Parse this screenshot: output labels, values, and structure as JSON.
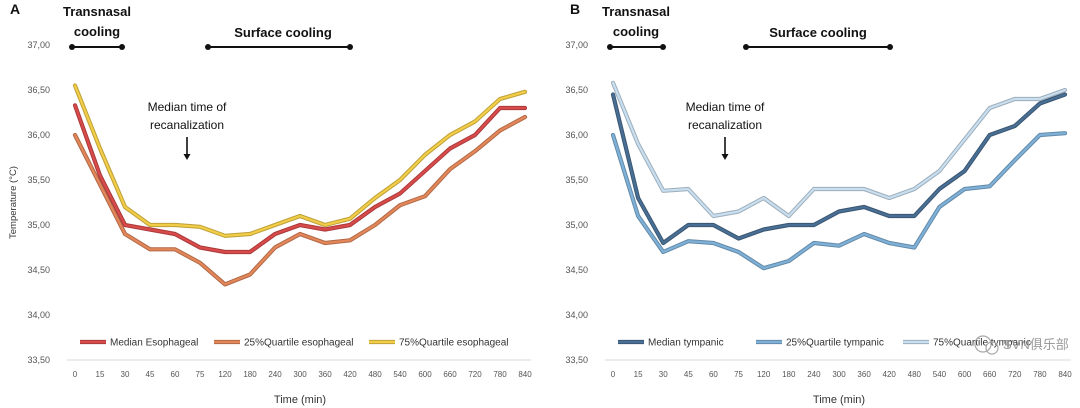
{
  "watermark": "SVN俱乐部",
  "chart_data": [
    {
      "type": "line",
      "panel_label": "A",
      "xlabel": "Time (min)",
      "ylabel": "Temperature (°C)",
      "ylim": [
        33.5,
        37.0
      ],
      "ytick_labels": [
        "33,50",
        "34,00",
        "34,50",
        "35,00",
        "35,50",
        "36,00",
        "36,50",
        "37,00"
      ],
      "categories": [
        "0",
        "15",
        "30",
        "45",
        "60",
        "75",
        "120",
        "180",
        "240",
        "300",
        "360",
        "420",
        "480",
        "540",
        "600",
        "660",
        "720",
        "780",
        "840"
      ],
      "annotations": {
        "phase1": "Transnasal cooling",
        "phase1_line1": "Transnasal",
        "phase1_line2": "cooling",
        "phase2": "Surface cooling",
        "recanalization_line1": "Median time of",
        "recanalization_line2": "recanalization"
      },
      "legend_position": "bottom",
      "series": [
        {
          "name": "Median Esophageal",
          "color": "#d94a4a",
          "values": [
            36.33,
            35.55,
            35.0,
            34.95,
            34.9,
            34.75,
            34.7,
            34.7,
            34.9,
            35.0,
            34.95,
            35.0,
            35.2,
            35.35,
            35.6,
            35.85,
            36.0,
            36.3,
            36.3
          ]
        },
        {
          "name": "25%Quartile esophageal",
          "color": "#e3875a",
          "values": [
            36.0,
            35.45,
            34.9,
            34.73,
            34.73,
            34.58,
            34.34,
            34.45,
            34.75,
            34.9,
            34.8,
            34.83,
            35.0,
            35.22,
            35.32,
            35.62,
            35.82,
            36.05,
            36.2
          ]
        },
        {
          "name": "75%Quartile esophageal",
          "color": "#f2cd48",
          "values": [
            36.55,
            35.85,
            35.2,
            35.0,
            35.0,
            34.98,
            34.88,
            34.9,
            35.0,
            35.1,
            35.0,
            35.07,
            35.3,
            35.5,
            35.78,
            36.0,
            36.15,
            36.4,
            36.48
          ]
        }
      ]
    },
    {
      "type": "line",
      "panel_label": "B",
      "xlabel": "Time (min)",
      "ylabel": "",
      "ylim": [
        33.5,
        37.0
      ],
      "ytick_labels": [
        "33,50",
        "34,00",
        "34,50",
        "35,00",
        "35,50",
        "36,00",
        "36,50",
        "37,00"
      ],
      "categories": [
        "0",
        "15",
        "30",
        "45",
        "60",
        "75",
        "120",
        "180",
        "240",
        "300",
        "360",
        "420",
        "480",
        "540",
        "600",
        "660",
        "720",
        "780",
        "840"
      ],
      "annotations": {
        "phase1": "Transnasal cooling",
        "phase1_line1": "Transnasal",
        "phase1_line2": "cooling",
        "phase2": "Surface cooling",
        "recanalization_line1": "Median time of",
        "recanalization_line2": "recanalization"
      },
      "legend_position": "bottom",
      "series": [
        {
          "name": "Median tympanic",
          "color": "#4a6f94",
          "values": [
            36.45,
            35.3,
            34.8,
            35.0,
            35.0,
            34.85,
            34.95,
            35.0,
            35.0,
            35.15,
            35.2,
            35.1,
            35.1,
            35.4,
            35.6,
            36.0,
            36.1,
            36.35,
            36.45
          ]
        },
        {
          "name": "25%Quartile tympanic",
          "color": "#7fb1d8",
          "values": [
            36.0,
            35.1,
            34.7,
            34.82,
            34.8,
            34.7,
            34.52,
            34.6,
            34.8,
            34.77,
            34.9,
            34.8,
            34.75,
            35.2,
            35.4,
            35.43,
            35.72,
            36.0,
            36.02
          ]
        },
        {
          "name": "75%Quartile tympanic",
          "color": "#c9dff0",
          "values": [
            36.58,
            35.9,
            35.38,
            35.4,
            35.1,
            35.15,
            35.3,
            35.1,
            35.4,
            35.4,
            35.4,
            35.3,
            35.4,
            35.6,
            35.95,
            36.3,
            36.4,
            36.4,
            36.5
          ]
        }
      ]
    }
  ]
}
